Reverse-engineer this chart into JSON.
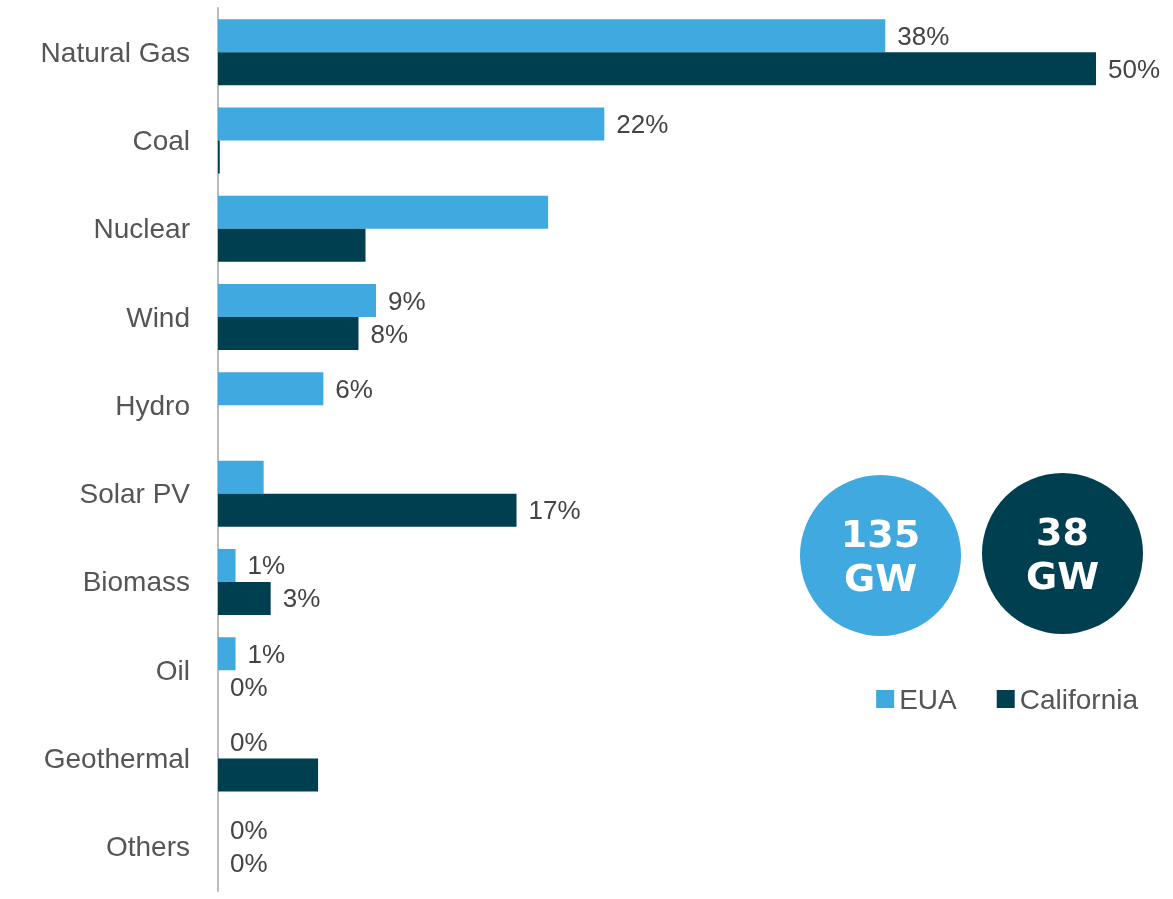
{
  "chart_data": {
    "type": "bar",
    "orientation": "horizontal",
    "categories": [
      "Natural Gas",
      "Coal",
      "Nuclear",
      "Wind",
      "Hydro",
      "Solar PV",
      "Biomass",
      "Oil",
      "Geothermal",
      "Others"
    ],
    "series": [
      {
        "name": "EUA",
        "color": "#3fa9e0",
        "values": [
          38,
          22,
          18.8,
          9,
          6,
          2.6,
          1,
          1,
          0,
          0
        ],
        "value_labels": [
          "38%",
          "22%",
          null,
          "9%",
          "6%",
          null,
          "1%",
          "1%",
          "0%",
          "0%"
        ]
      },
      {
        "name": "California",
        "color": "#003f4f",
        "values": [
          50,
          0.1,
          8.4,
          8,
          0,
          17,
          3,
          0,
          5.7,
          0
        ],
        "value_labels": [
          "50%",
          null,
          null,
          "8%",
          null,
          "17%",
          "3%",
          "0%",
          null,
          "0%"
        ]
      }
    ],
    "legend": "bottom right",
    "grid": false,
    "annotations": [
      "135 GW",
      "38 GW"
    ]
  }
}
